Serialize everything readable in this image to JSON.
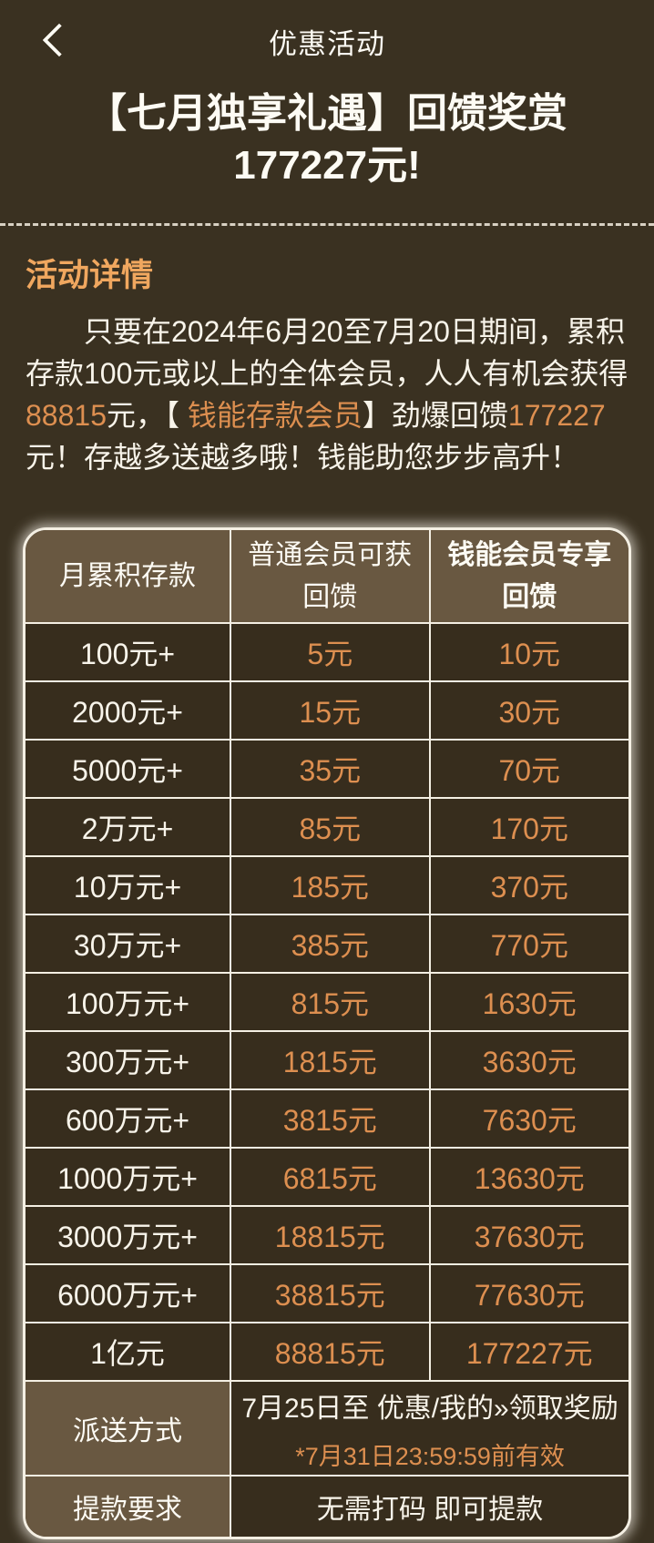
{
  "colors": {
    "page_bg": "#3a3121",
    "cell_bg": "#372d1d",
    "label_bg": "#695841",
    "text_white": "#f8f4ea",
    "accent_orange": "#dd8f50",
    "heading_orange": "#f0a75f",
    "border_light": "#f4efe3",
    "dashed_line": "#d8d1c3"
  },
  "navbar": {
    "title": "优惠活动",
    "back_icon": "chevron-left"
  },
  "promo": {
    "title": "【七月独享礼遇】回馈奖赏177227元!"
  },
  "details": {
    "heading": "活动详情",
    "segments": [
      {
        "text": "只要在2024年6月20至7月20日期间，累积存款100元或以上的全体会员，人人有机会获得",
        "accent": false
      },
      {
        "text": "88815",
        "accent": true
      },
      {
        "text": "元，【 ",
        "accent": false
      },
      {
        "text": "钱能存款会员",
        "accent": true
      },
      {
        "text": "】劲爆回馈",
        "accent": false
      },
      {
        "text": "177227",
        "accent": true
      },
      {
        "text": "元！存越多送越多哦！钱能助您步步高升！",
        "accent": false
      }
    ]
  },
  "table": {
    "headers": [
      "月累积存款",
      "普通会员可获回馈",
      "钱能会员专享回馈"
    ],
    "rows": [
      {
        "deposit": "100元+",
        "normal": "5元",
        "vip": "10元"
      },
      {
        "deposit": "2000元+",
        "normal": "15元",
        "vip": "30元"
      },
      {
        "deposit": "5000元+",
        "normal": "35元",
        "vip": "70元"
      },
      {
        "deposit": "2万元+",
        "normal": "85元",
        "vip": "170元"
      },
      {
        "deposit": "10万元+",
        "normal": "185元",
        "vip": "370元"
      },
      {
        "deposit": "30万元+",
        "normal": "385元",
        "vip": "770元"
      },
      {
        "deposit": "100万元+",
        "normal": "815元",
        "vip": "1630元"
      },
      {
        "deposit": "300万元+",
        "normal": "1815元",
        "vip": "3630元"
      },
      {
        "deposit": "600万元+",
        "normal": "3815元",
        "vip": "7630元"
      },
      {
        "deposit": "1000万元+",
        "normal": "6815元",
        "vip": "13630元"
      },
      {
        "deposit": "3000万元+",
        "normal": "18815元",
        "vip": "37630元"
      },
      {
        "deposit": "6000万元+",
        "normal": "38815元",
        "vip": "77630元"
      },
      {
        "deposit": "1亿元",
        "normal": "88815元",
        "vip": "177227元"
      }
    ],
    "delivery": {
      "label": "派送方式",
      "line1": "7月25日至 优惠/我的»领取奖励",
      "line2": "*7月31日23:59:59前有效"
    },
    "withdraw": {
      "label": "提款要求",
      "value": "无需打码 即可提款"
    }
  }
}
